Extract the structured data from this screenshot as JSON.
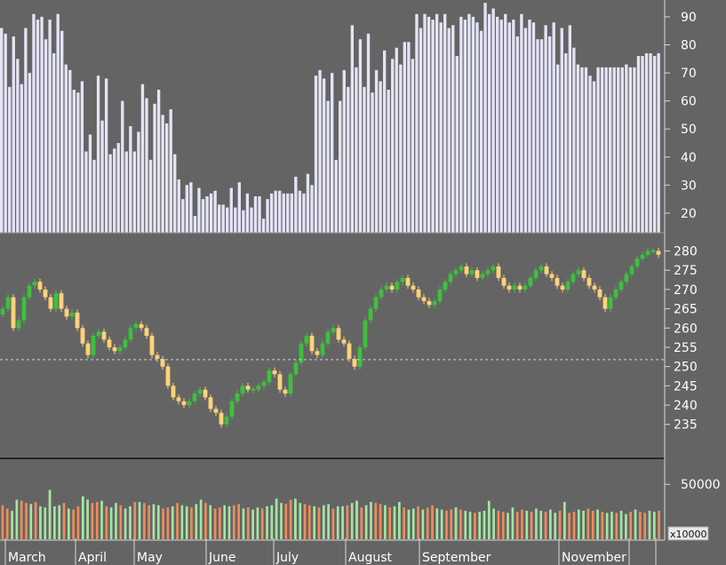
{
  "chart_data": [
    {
      "type": "bar",
      "panel": "indicator",
      "yticks": [
        20,
        30,
        40,
        50,
        60,
        70,
        80,
        90
      ],
      "ylim": [
        13,
        96
      ],
      "values": [
        86,
        84,
        65,
        83,
        75,
        66,
        86,
        70,
        91,
        89,
        90,
        82,
        89,
        77,
        91,
        85,
        73,
        71,
        64,
        63,
        67,
        42,
        48,
        39,
        69,
        53,
        68,
        41,
        43,
        45,
        60,
        42,
        51,
        42,
        49,
        66,
        61,
        39,
        59,
        64,
        55,
        52,
        57,
        41,
        32,
        25,
        30,
        31,
        19,
        29,
        25,
        26,
        27,
        28,
        23,
        23,
        22,
        29,
        22,
        31,
        21,
        27,
        22,
        26,
        26,
        18,
        25,
        27,
        28,
        28,
        27,
        27,
        27,
        33,
        28,
        27,
        34,
        30,
        69,
        71,
        68,
        60,
        70,
        39,
        60,
        71,
        65,
        87,
        72,
        82,
        65,
        84,
        63,
        71,
        67,
        78,
        64,
        75,
        79,
        73,
        81,
        81,
        75,
        91,
        86,
        91,
        90,
        89,
        91,
        88,
        91,
        86,
        87,
        76,
        90,
        89,
        91,
        90,
        88,
        85,
        95,
        91,
        93,
        90,
        89,
        91,
        88,
        89,
        83,
        91,
        86,
        89,
        88,
        82,
        82,
        87,
        83,
        88,
        73,
        86,
        77,
        87,
        79,
        73,
        72,
        72,
        69,
        67,
        72,
        72,
        72,
        72,
        72,
        72,
        72,
        73,
        72,
        72,
        76,
        76,
        77,
        77,
        76,
        77
      ],
      "note": "values read off the right-hand axis"
    },
    {
      "type": "candlestick",
      "panel": "price",
      "yticks": [
        235,
        240,
        245,
        250,
        255,
        260,
        265,
        270,
        275,
        280
      ],
      "ylim": [
        226.4,
        284.5
      ],
      "reference_line": 251.8,
      "up_color": "#3fbf3f",
      "down_color": "#ffd27a",
      "closes": [
        265,
        268,
        260,
        262,
        268,
        271,
        272,
        270,
        268,
        265,
        269,
        265,
        263,
        264,
        260,
        256,
        253,
        258,
        259,
        257,
        255,
        254,
        255,
        257,
        260,
        261,
        260,
        258,
        253,
        252,
        250,
        245,
        242,
        241,
        240,
        241,
        243,
        244,
        242,
        239,
        238,
        235,
        237,
        241,
        243,
        245,
        244,
        244,
        245,
        246,
        249,
        248,
        244,
        243,
        248,
        251,
        256,
        258,
        254,
        253,
        256,
        259,
        260,
        257,
        256,
        252,
        250,
        255,
        262,
        265,
        268,
        270,
        271,
        270,
        272,
        273,
        271,
        270,
        268,
        267,
        266,
        267,
        270,
        272,
        274,
        275,
        276,
        274,
        275,
        273,
        274,
        275,
        276,
        273,
        271,
        270,
        271,
        270,
        271,
        273,
        275,
        276,
        274,
        273,
        271,
        270,
        272,
        274,
        275,
        273,
        271,
        270,
        268,
        265,
        268,
        270,
        272,
        274,
        276,
        278,
        279,
        280,
        280,
        279
      ],
      "note": "closing prices estimated from the right-hand axis"
    },
    {
      "type": "bar",
      "panel": "volume",
      "yticks": [
        50000
      ],
      "ylim": [
        0,
        72000
      ],
      "multiplier_label": "x10000",
      "up_color": "#a3e6a3",
      "down_color": "#f08c5a",
      "values": [
        31000,
        28000,
        26000,
        36000,
        35000,
        33000,
        32000,
        34000,
        30000,
        29000,
        45000,
        30000,
        31000,
        33000,
        28000,
        27000,
        30000,
        39000,
        36000,
        33000,
        34000,
        35000,
        30000,
        29000,
        33000,
        31000,
        28000,
        30000,
        34000,
        34000,
        33000,
        31000,
        32000,
        31000,
        28000,
        29000,
        30000,
        33000,
        31000,
        30000,
        29000,
        32000,
        36000,
        33000,
        31000,
        28000,
        29000,
        31000,
        30000,
        31000,
        32000,
        28000,
        29000,
        27000,
        29000,
        28000,
        30000,
        31000,
        37000,
        33000,
        32000,
        36000,
        34000,
        33000,
        32000,
        31000,
        30000,
        29000,
        31000,
        32000,
        28000,
        30000,
        30000,
        31000,
        33000,
        35000,
        29000,
        31000,
        34000,
        33000,
        32000,
        31000,
        29000,
        30000,
        34000,
        29000,
        27000,
        28000,
        30000,
        27000,
        29000,
        31000,
        28000,
        27000,
        26000,
        27000,
        28000,
        27000,
        26000,
        25000,
        24000,
        25000,
        26000,
        27000,
        28000,
        26000,
        25000,
        24000,
        29000,
        25000,
        27000,
        26000,
        25000,
        28000,
        26000,
        25000,
        27000,
        24000,
        26000,
        25000,
        24000,
        25000,
        27000,
        26000,
        28000,
        26000,
        27000,
        25000,
        24000,
        25000,
        24000,
        26000,
        23000,
        25000,
        27000,
        25000,
        24000,
        26000,
        25000,
        26000
      ],
      "spikes": [
        45000,
        39000,
        37000,
        37000,
        35000,
        33000,
        29000,
        35000,
        34000
      ]
    },
    {
      "type": "axis",
      "panel": "months",
      "months": [
        "March",
        "April",
        "May",
        "June",
        "July",
        "August",
        "September",
        "November"
      ]
    }
  ]
}
